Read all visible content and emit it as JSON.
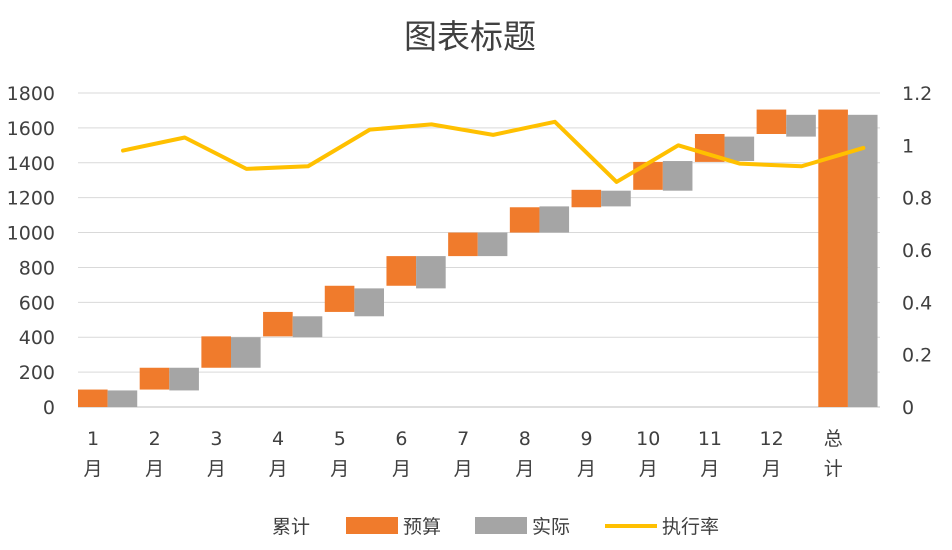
{
  "chart_data": {
    "type": "bar",
    "subtype": "waterfall-with-line",
    "title": "图表标题",
    "categories": [
      [
        "1",
        "月"
      ],
      [
        "2",
        "月"
      ],
      [
        "3",
        "月"
      ],
      [
        "4",
        "月"
      ],
      [
        "5",
        "月"
      ],
      [
        "6",
        "月"
      ],
      [
        "7",
        "月"
      ],
      [
        "8",
        "月"
      ],
      [
        "9",
        "月"
      ],
      [
        "10",
        "月"
      ],
      [
        "11",
        "月"
      ],
      [
        "12",
        "月"
      ],
      [
        "总",
        "计"
      ]
    ],
    "ylim": [
      0,
      1800
    ],
    "yticks": [
      "0",
      "200",
      "400",
      "600",
      "800",
      "1000",
      "1200",
      "1400",
      "1600",
      "1800"
    ],
    "y2lim": [
      0,
      1.2
    ],
    "y2ticks": [
      "0",
      "0.2",
      "0.4",
      "0.6",
      "0.8",
      "1",
      "1.2"
    ],
    "grid": true,
    "legend_position": "bottom",
    "series": [
      {
        "name": "累计",
        "kind": "invisible-base",
        "values": [
          0,
          100,
          225,
          405,
          545,
          695,
          865,
          1000,
          1145,
          1245,
          1405,
          1565,
          0
        ]
      },
      {
        "name": "预算",
        "color": "#F07B2C",
        "base": [
          0,
          100,
          225,
          405,
          545,
          695,
          865,
          1000,
          1145,
          1245,
          1405,
          1565,
          0
        ],
        "values": [
          100,
          125,
          180,
          140,
          150,
          170,
          135,
          145,
          100,
          160,
          160,
          140,
          1705
        ]
      },
      {
        "name": "实际",
        "color": "#A5A5A5",
        "base": [
          0,
          95,
          225,
          400,
          520,
          680,
          865,
          1000,
          1150,
          1240,
          1410,
          1550,
          0
        ],
        "values": [
          95,
          130,
          175,
          120,
          160,
          185,
          135,
          150,
          90,
          170,
          140,
          125,
          1675
        ]
      },
      {
        "name": "执行率",
        "color": "#FFC000",
        "axis": "secondary",
        "values": [
          0.98,
          1.03,
          0.91,
          0.92,
          1.06,
          1.08,
          1.04,
          1.09,
          0.86,
          1.0,
          0.93,
          0.92,
          0.99
        ]
      }
    ]
  }
}
